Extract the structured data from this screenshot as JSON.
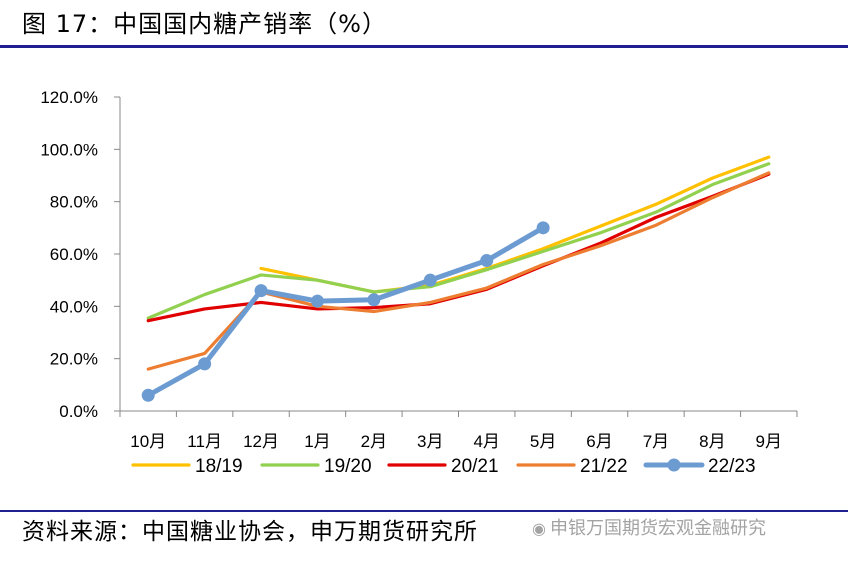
{
  "figure": {
    "title": "图 17：中国国内糖产销率（%）",
    "source": "资料来源：中国糖业协会，申万期货研究所",
    "watermark": "申银万国期货宏观金融研究",
    "watermark_icon": "wechat-icon"
  },
  "chart_data": {
    "type": "line",
    "title": "",
    "xlabel": "",
    "ylabel": "",
    "categories": [
      "10月",
      "11月",
      "12月",
      "1月",
      "2月",
      "3月",
      "4月",
      "5月",
      "6月",
      "7月",
      "8月",
      "9月"
    ],
    "y_ticks": [
      "0.0%",
      "20.0%",
      "40.0%",
      "60.0%",
      "80.0%",
      "100.0%",
      "120.0%"
    ],
    "ylim": [
      0,
      120
    ],
    "grid": false,
    "legend_position": "bottom",
    "series": [
      {
        "name": "18/19",
        "color": "#FFC000",
        "markers": false,
        "values": [
          null,
          null,
          54.5,
          50.0,
          45.5,
          48.0,
          54.5,
          62.0,
          70.5,
          79.0,
          89.0,
          97.0
        ]
      },
      {
        "name": "19/20",
        "color": "#92D050",
        "markers": false,
        "values": [
          35.5,
          44.5,
          52.0,
          50.0,
          45.5,
          47.5,
          54.0,
          61.0,
          68.0,
          76.0,
          86.5,
          94.5
        ]
      },
      {
        "name": "20/21",
        "color": "#E00000",
        "markers": false,
        "values": [
          34.5,
          39.0,
          41.5,
          39.0,
          39.5,
          41.0,
          46.5,
          55.5,
          64.0,
          74.0,
          82.0,
          90.5
        ]
      },
      {
        "name": "21/22",
        "color": "#ED7D31",
        "markers": false,
        "values": [
          16.0,
          22.0,
          45.5,
          40.0,
          38.0,
          41.5,
          47.0,
          56.0,
          63.0,
          71.0,
          81.5,
          91.0
        ]
      },
      {
        "name": "22/23",
        "color": "#6C9BD2",
        "markers": true,
        "values": [
          6.0,
          18.0,
          46.0,
          42.0,
          42.5,
          50.0,
          57.5,
          70.0,
          null,
          null,
          null,
          null
        ]
      }
    ]
  }
}
